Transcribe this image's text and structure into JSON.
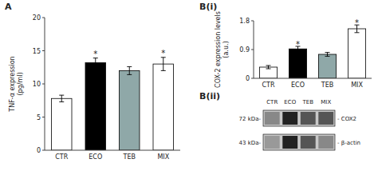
{
  "chart_data": [
    {
      "type": "bar",
      "title": "A",
      "categories": [
        "CTR",
        "ECO",
        "TEB",
        "MIX"
      ],
      "values": [
        7.8,
        13.2,
        12.0,
        13.0
      ],
      "errors": [
        0.5,
        0.7,
        0.6,
        1.0
      ],
      "colors": [
        "white",
        "black",
        "#8fa8a8",
        "white"
      ],
      "ylabel": "TNF-α expression\n(pg/ml)",
      "ylim": [
        0,
        20
      ],
      "yticks": [
        0,
        5,
        10,
        15,
        20
      ],
      "annotations": [
        null,
        "*",
        null,
        "*"
      ]
    },
    {
      "type": "bar",
      "title": "B(i)",
      "categories": [
        "CTR",
        "ECO",
        "TEB",
        "MIX"
      ],
      "values": [
        0.35,
        0.92,
        0.75,
        1.55
      ],
      "errors": [
        0.05,
        0.08,
        0.06,
        0.12
      ],
      "colors": [
        "white",
        "black",
        "#8fa8a8",
        "white"
      ],
      "ylabel": "COX-2 expression levels\n(a.u.)",
      "ylim": [
        0,
        1.8
      ],
      "yticks": [
        0,
        0.9,
        1.8
      ],
      "annotations": [
        null,
        "*",
        null,
        "*"
      ]
    },
    {
      "type": "blot",
      "title": "B(ii)",
      "categories": [
        "CTR",
        "ECO",
        "TEB",
        "MIX"
      ],
      "color": "#c8c8c8",
      "series": [
        {
          "name": "- COX2",
          "row_label": "72 kDa-",
          "colors": [
            "#888888",
            "#222222",
            "#555555",
            "#555555"
          ]
        },
        {
          "name": "- β-actin",
          "row_label": "43 kDa-",
          "colors": [
            "#999999",
            "#222222",
            "#555555",
            "#888888"
          ]
        }
      ]
    }
  ]
}
